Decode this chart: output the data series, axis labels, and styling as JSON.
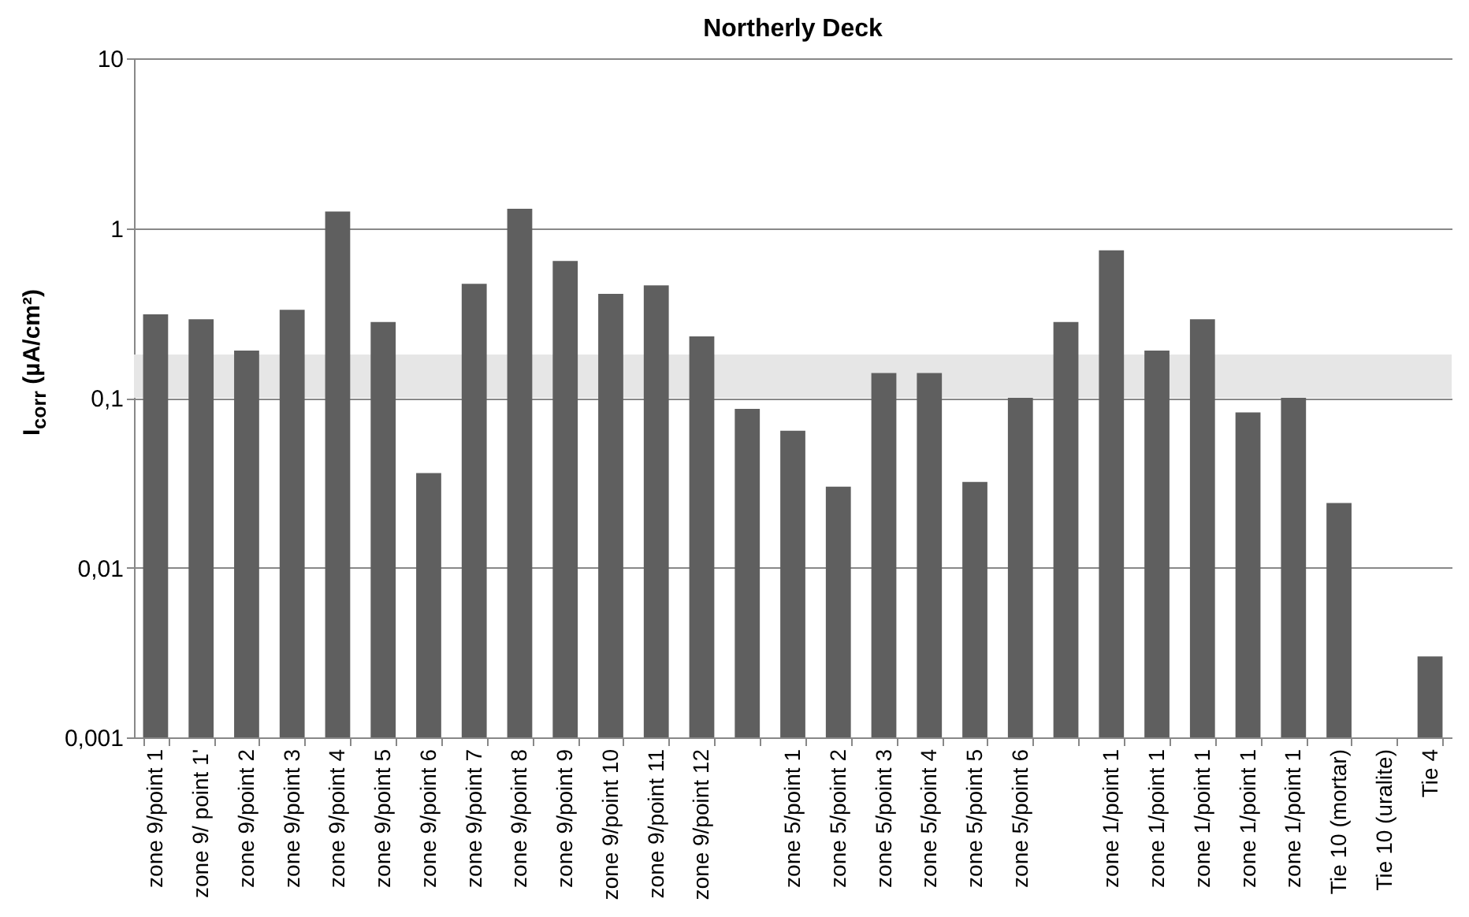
{
  "chart_data": {
    "type": "bar",
    "title": "Northerly Deck",
    "ylabel": "I$_{corr}$ (µA/cm²)",
    "categories": [
      "zone 9/point 1",
      "zone 9/ point 1'",
      "zone 9/point 2",
      "zone 9/point 3",
      "zone 9/point 4",
      "zone 9/point 5",
      "zone 9/point 6",
      "zone 9/point 7",
      "zone 9/point 8",
      "zone 9/point 9",
      "zone 9/point 10",
      "zone 9/point 11",
      "zone 9/point 12",
      null,
      "zone 5/point 1",
      "zone 5/point 2",
      "zone 5/point 3",
      "zone 5/point 4",
      "zone 5/point 5",
      "zone 5/point 6",
      null,
      "zone 1/point 1",
      "zone 1/point 1",
      "zone 1/point 1",
      "zone 1/point 1",
      "zone 1/point 1",
      "Tie 10 (mortar)",
      "Tie 10 (uralite)",
      "Tie 4"
    ],
    "values": [
      0.31,
      0.29,
      0.19,
      0.33,
      1.25,
      0.28,
      0.036,
      0.47,
      1.3,
      0.64,
      0.41,
      0.46,
      0.23,
      0.086,
      0.064,
      0.03,
      0.14,
      0.14,
      0.032,
      0.1,
      0.28,
      0.74,
      0.19,
      0.29,
      0.082,
      0.1,
      0.024,
      null,
      0.003
    ],
    "color": "#5f5f5f",
    "log": true,
    "ylim": [
      0.001,
      10
    ],
    "yticks": [
      {
        "value": 0.001,
        "label": "0,001"
      },
      {
        "value": 0.01,
        "label": "0,01"
      },
      {
        "value": 0.1,
        "label": "0,1"
      },
      {
        "value": 1,
        "label": "1"
      },
      {
        "value": 10,
        "label": "10"
      }
    ],
    "grid": "y",
    "bands": [
      {
        "axis": "y",
        "from": 0.1,
        "to": 0.18,
        "color": "#e6e6e6"
      }
    ]
  }
}
